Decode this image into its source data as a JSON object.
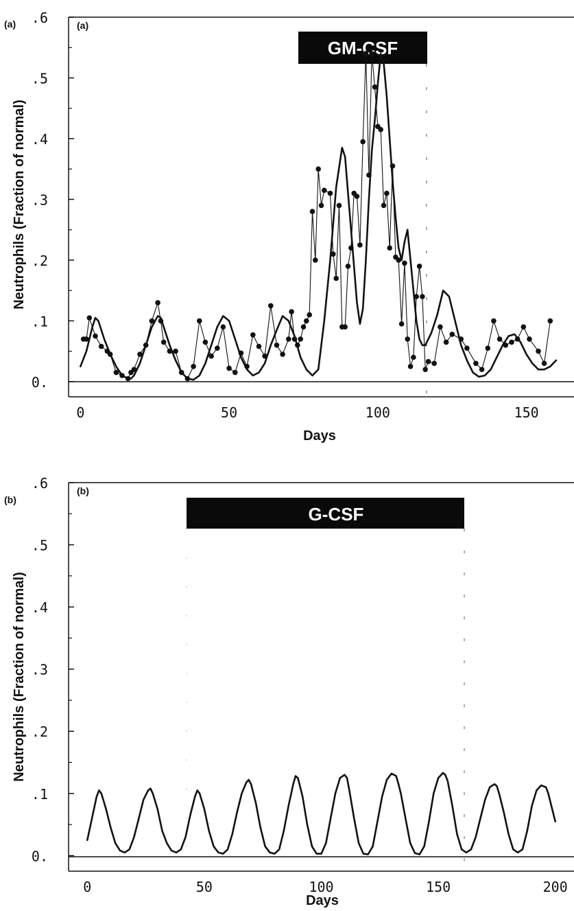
{
  "figure": {
    "colors": {
      "ink": "#111111",
      "background": "#ffffff",
      "bar_text": "#ffffff"
    }
  },
  "chart_data": [
    {
      "type": "line",
      "panel_label_outer": "(a)",
      "panel_label_inner": "(a)",
      "treatment_bar_label": "GM-CSF",
      "treatment_period": [
        80,
        116
      ],
      "xlabel": "Days",
      "ylabel": "Neutrophils (Fraction of normal)",
      "xlim": [
        -4,
        166
      ],
      "ylim": [
        -0.025,
        0.6
      ],
      "xticks": [
        0,
        50,
        100,
        150
      ],
      "xtick_labels": [
        "0",
        "50",
        "100",
        "150"
      ],
      "yticks": [
        0,
        0.1,
        0.2,
        0.3,
        0.4,
        0.5,
        0.6
      ],
      "ytick_labels": [
        "0.",
        ".1",
        ".2",
        ".3",
        ".4",
        ".5",
        ".6"
      ],
      "grid": false,
      "series": [
        {
          "style": "line-with-markers",
          "x": [
            1,
            2,
            3,
            5,
            7,
            9,
            10,
            12,
            14,
            16,
            17,
            18,
            20,
            22,
            24,
            26,
            27,
            28,
            30,
            32,
            34,
            36,
            38,
            40,
            42,
            44,
            46,
            48,
            50,
            52,
            54,
            56,
            58,
            60,
            62,
            64,
            66,
            68,
            70,
            71,
            72,
            73,
            74,
            75,
            76,
            77,
            78,
            79,
            80,
            81,
            82,
            84,
            85,
            86,
            87,
            88,
            89,
            90,
            91,
            92,
            93,
            94,
            95,
            96,
            97,
            98,
            99,
            100,
            101,
            102,
            103,
            104,
            105,
            106,
            107,
            108,
            109,
            110,
            111,
            112,
            113,
            114,
            115,
            116,
            117,
            119,
            121,
            123,
            125,
            128,
            130,
            133,
            135,
            137,
            139,
            141,
            143,
            145,
            147,
            149,
            151,
            154,
            156,
            158
          ],
          "values": [
            0.07,
            0.07,
            0.105,
            0.075,
            0.058,
            0.05,
            0.045,
            0.015,
            0.01,
            0.005,
            0.015,
            0.02,
            0.045,
            0.06,
            0.1,
            0.13,
            0.1,
            0.065,
            0.05,
            0.05,
            0.015,
            0.005,
            0.025,
            0.1,
            0.065,
            0.042,
            0.055,
            0.09,
            0.022,
            0.015,
            0.047,
            0.025,
            0.077,
            0.058,
            0.042,
            0.125,
            0.06,
            0.045,
            0.07,
            0.115,
            0.07,
            0.06,
            0.07,
            0.09,
            0.1,
            0.11,
            0.28,
            0.2,
            0.35,
            0.29,
            0.315,
            0.31,
            0.21,
            0.17,
            0.29,
            0.09,
            0.09,
            0.19,
            0.22,
            0.31,
            0.305,
            0.225,
            0.395,
            0.54,
            0.34,
            0.54,
            0.485,
            0.42,
            0.415,
            0.29,
            0.31,
            0.22,
            0.355,
            0.205,
            0.2,
            0.095,
            0.195,
            0.07,
            0.025,
            0.04,
            0.14,
            0.19,
            0.14,
            0.02,
            0.033,
            0.03,
            0.09,
            0.065,
            0.078,
            0.07,
            0.055,
            0.03,
            0.02,
            0.055,
            0.1,
            0.07,
            0.06,
            0.065,
            0.07,
            0.09,
            0.07,
            0.05,
            0.03,
            0.1
          ]
        },
        {
          "style": "smooth-curve",
          "x": [
            0,
            2,
            4,
            5,
            6,
            8,
            10,
            12,
            14,
            16,
            17,
            18,
            20,
            22,
            24,
            26,
            27,
            28,
            30,
            32,
            34,
            36,
            38,
            40,
            42,
            44,
            46,
            48,
            50,
            52,
            54,
            56,
            58,
            60,
            62,
            64,
            66,
            68,
            70,
            72,
            74,
            76,
            78,
            80,
            82,
            84,
            86,
            88,
            89,
            90,
            91,
            92,
            93,
            94,
            95,
            96,
            97,
            98,
            99,
            100,
            101,
            102,
            103,
            104,
            105,
            106,
            107,
            108,
            109,
            110,
            111,
            112,
            113,
            114,
            115,
            116,
            118,
            120,
            122,
            124,
            126,
            128,
            130,
            132,
            134,
            136,
            138,
            140,
            142,
            144,
            146,
            148,
            150,
            152,
            154,
            156,
            158,
            160
          ],
          "values": [
            0.025,
            0.05,
            0.09,
            0.105,
            0.1,
            0.07,
            0.045,
            0.025,
            0.01,
            0.005,
            0.005,
            0.01,
            0.03,
            0.06,
            0.09,
            0.108,
            0.105,
            0.09,
            0.06,
            0.035,
            0.015,
            0.005,
            0.003,
            0.01,
            0.03,
            0.06,
            0.09,
            0.108,
            0.1,
            0.07,
            0.04,
            0.02,
            0.01,
            0.015,
            0.03,
            0.06,
            0.085,
            0.108,
            0.1,
            0.075,
            0.04,
            0.02,
            0.01,
            0.02,
            0.1,
            0.2,
            0.32,
            0.385,
            0.37,
            0.31,
            0.25,
            0.19,
            0.13,
            0.095,
            0.12,
            0.2,
            0.3,
            0.38,
            0.43,
            0.49,
            0.54,
            0.525,
            0.47,
            0.4,
            0.33,
            0.27,
            0.22,
            0.2,
            0.23,
            0.25,
            0.2,
            0.15,
            0.1,
            0.07,
            0.06,
            0.06,
            0.08,
            0.11,
            0.15,
            0.14,
            0.1,
            0.06,
            0.035,
            0.015,
            0.008,
            0.01,
            0.02,
            0.04,
            0.06,
            0.075,
            0.078,
            0.065,
            0.045,
            0.03,
            0.02,
            0.02,
            0.025,
            0.035
          ]
        }
      ]
    },
    {
      "type": "line",
      "panel_label_outer": "(b)",
      "panel_label_inner": "(b)",
      "treatment_bar_label": "G-CSF",
      "treatment_period": [
        40,
        160
      ],
      "xlabel": "Days",
      "ylabel": "Neutrophils (Fraction of normal)",
      "xlim": [
        -8,
        208
      ],
      "ylim": [
        -0.025,
        0.6
      ],
      "xticks": [
        0,
        50,
        100,
        150,
        200
      ],
      "xtick_labels": [
        "0",
        "50",
        "100",
        "150",
        "200"
      ],
      "yticks": [
        0,
        0.1,
        0.2,
        0.3,
        0.4,
        0.5,
        0.6
      ],
      "ytick_labels": [
        "0.",
        ".1",
        ".2",
        ".3",
        ".4",
        ".5",
        ".6"
      ],
      "grid": false,
      "series": [
        {
          "style": "smooth-curve",
          "x": [
            0,
            2,
            4,
            5,
            6,
            8,
            10,
            12,
            14,
            16,
            18,
            20,
            22,
            24,
            26,
            27,
            28,
            30,
            32,
            34,
            36,
            38,
            40,
            42,
            44,
            46,
            47,
            48,
            50,
            52,
            54,
            56,
            58,
            60,
            62,
            64,
            66,
            68,
            69,
            70,
            72,
            74,
            76,
            78,
            80,
            82,
            84,
            86,
            88,
            89,
            90,
            92,
            94,
            96,
            98,
            100,
            102,
            104,
            106,
            108,
            110,
            111,
            112,
            114,
            116,
            118,
            120,
            122,
            124,
            126,
            128,
            130,
            132,
            133,
            134,
            136,
            138,
            140,
            142,
            144,
            146,
            148,
            150,
            152,
            153,
            154,
            156,
            158,
            160,
            162,
            164,
            166,
            168,
            170,
            172,
            174,
            175,
            176,
            178,
            180,
            182,
            184,
            186,
            188,
            190,
            192,
            194,
            196,
            197,
            198,
            200
          ],
          "values": [
            0.025,
            0.06,
            0.095,
            0.105,
            0.1,
            0.075,
            0.045,
            0.02,
            0.008,
            0.005,
            0.01,
            0.03,
            0.06,
            0.09,
            0.105,
            0.108,
            0.1,
            0.075,
            0.04,
            0.02,
            0.008,
            0.005,
            0.01,
            0.03,
            0.065,
            0.095,
            0.105,
            0.1,
            0.075,
            0.04,
            0.015,
            0.005,
            0.003,
            0.01,
            0.035,
            0.07,
            0.1,
            0.118,
            0.122,
            0.115,
            0.085,
            0.045,
            0.015,
            0.005,
            0.003,
            0.01,
            0.04,
            0.08,
            0.115,
            0.128,
            0.125,
            0.095,
            0.05,
            0.015,
            0.003,
            0.003,
            0.02,
            0.06,
            0.1,
            0.125,
            0.13,
            0.125,
            0.105,
            0.06,
            0.02,
            0.003,
            0.002,
            0.015,
            0.055,
            0.095,
            0.122,
            0.132,
            0.128,
            0.115,
            0.1,
            0.06,
            0.02,
            0.004,
            0.002,
            0.015,
            0.055,
            0.1,
            0.125,
            0.133,
            0.13,
            0.12,
            0.08,
            0.035,
            0.01,
            0.005,
            0.01,
            0.03,
            0.06,
            0.09,
            0.11,
            0.115,
            0.112,
            0.1,
            0.07,
            0.035,
            0.01,
            0.005,
            0.01,
            0.04,
            0.08,
            0.105,
            0.113,
            0.11,
            0.1,
            0.085,
            0.055
          ]
        }
      ]
    }
  ]
}
